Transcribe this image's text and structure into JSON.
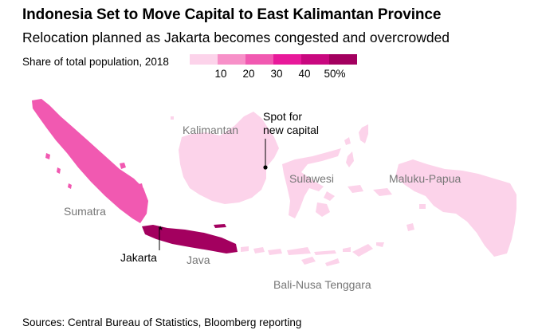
{
  "title": "Indonesia Set to Move Capital to East Kalimantan Province",
  "subtitle": "Relocation planned as Jakarta becomes congested and overcrowded",
  "legend": {
    "title": "Share of total population, 2018",
    "colors": [
      "#fcd3ea",
      "#f790c8",
      "#f159b1",
      "#e8199a",
      "#c9087f",
      "#a3005f"
    ],
    "ticks": [
      "10",
      "20",
      "30",
      "40",
      "50%"
    ]
  },
  "regions": [
    {
      "id": "sumatra",
      "label": "Sumatra",
      "color": "#f159b1"
    },
    {
      "id": "java",
      "label": "Java",
      "color": "#a3005f"
    },
    {
      "id": "kalimantan",
      "label": "Kalimantan",
      "color": "#fcd3ea"
    },
    {
      "id": "sulawesi",
      "label": "Sulawesi",
      "color": "#fcd3ea"
    },
    {
      "id": "maluku-papua",
      "label": "Maluku-Papua",
      "color": "#fcd3ea"
    },
    {
      "id": "bali-nusa",
      "label": "Bali-Nusa Tenggara",
      "color": "#fcd3ea"
    }
  ],
  "annotations": {
    "capital_line1": "Spot for",
    "capital_line2": "new capital",
    "jakarta": "Jakarta"
  },
  "source": "Sources: Central Bureau of Statistics, Bloomberg reporting"
}
